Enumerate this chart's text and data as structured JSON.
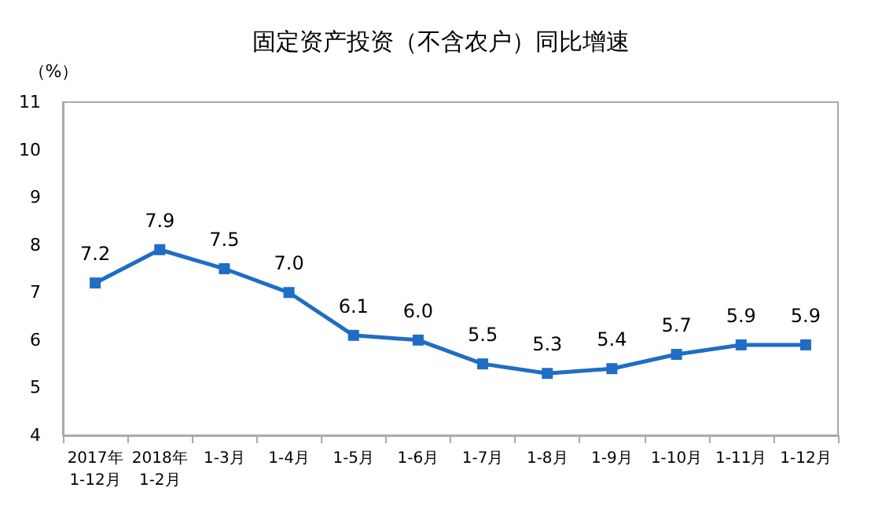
{
  "chart_data": {
    "type": "line",
    "title": "固定资产投资（不含农户）同比增速",
    "ylabel": "（%）",
    "categories": [
      "2017年\n1-12月",
      "2018年\n1-2月",
      "1-3月",
      "1-4月",
      "1-5月",
      "1-6月",
      "1-7月",
      "1-8月",
      "1-9月",
      "1-10月",
      "1-11月",
      "1-12月"
    ],
    "series": [
      {
        "color": "#1f6dc4",
        "values": [
          7.2,
          7.9,
          7.5,
          7.0,
          6.1,
          6.0,
          5.5,
          5.3,
          5.4,
          5.7,
          5.9,
          5.9
        ],
        "value_labels": [
          "7.2",
          "7.9",
          "7.5",
          "7.0",
          "6.1",
          "6.0",
          "5.5",
          "5.3",
          "5.4",
          "5.7",
          "5.9",
          "5.9"
        ]
      }
    ],
    "ylim": [
      4,
      11
    ],
    "yticks": [
      4,
      5,
      6,
      7,
      8,
      9,
      10,
      11
    ],
    "marker": "square",
    "line_style": "solid"
  }
}
